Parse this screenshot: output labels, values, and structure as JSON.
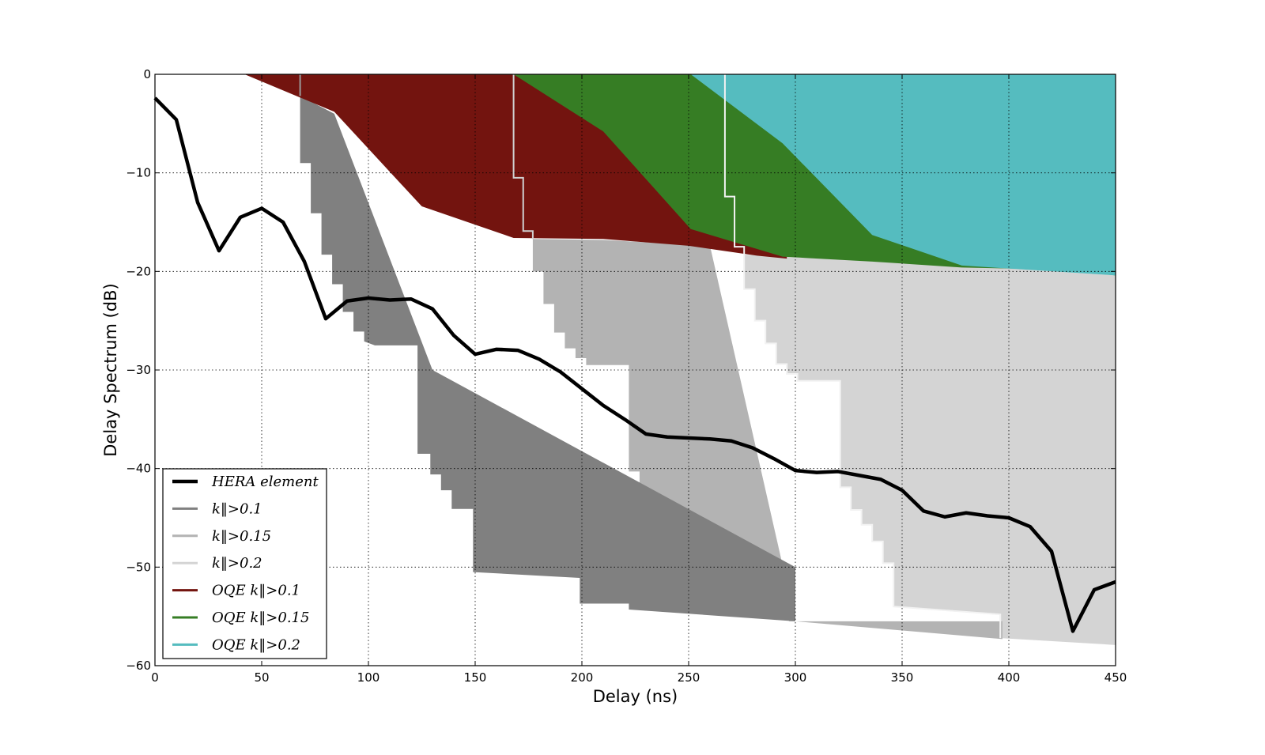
{
  "chart_data": {
    "type": "area",
    "title": "",
    "xlabel": "Delay (ns)",
    "ylabel": "Delay Spectrum (dB)",
    "xlim": [
      0,
      450
    ],
    "ylim": [
      -60,
      0
    ],
    "xticks": [
      0,
      50,
      100,
      150,
      200,
      250,
      300,
      350,
      400,
      450
    ],
    "yticks": [
      0,
      -10,
      -20,
      -30,
      -40,
      -50,
      -60
    ],
    "grid": true,
    "legend_position": "lower-left",
    "colors": {
      "hera": "#000000",
      "k01": "#808080",
      "k015": "#b3b3b3",
      "k02": "#d4d4d4",
      "oqe01": "#73140f",
      "oqe015": "#367d24",
      "oqe02": "#55bcbf"
    },
    "legend": [
      {
        "key": "hera",
        "label": "HERA element"
      },
      {
        "key": "k01",
        "label": "k‖>0.1"
      },
      {
        "key": "k015",
        "label": "k‖>0.15"
      },
      {
        "key": "k02",
        "label": "k‖>0.2"
      },
      {
        "key": "oqe01",
        "label": "OQE k‖>0.1"
      },
      {
        "key": "oqe015",
        "label": "OQE k‖>0.15"
      },
      {
        "key": "oqe02",
        "label": "OQE k‖>0.2"
      }
    ],
    "series": [
      {
        "name": "HERA element",
        "key": "hera",
        "type": "line",
        "x": [
          0,
          10,
          20,
          30,
          40,
          50,
          60,
          70,
          80,
          90,
          100,
          110,
          120,
          130,
          140,
          150,
          160,
          170,
          180,
          190,
          200,
          210,
          220,
          230,
          240,
          250,
          260,
          270,
          280,
          290,
          300,
          310,
          320,
          330,
          340,
          350,
          360,
          370,
          380,
          390,
          400,
          410,
          420,
          430,
          440,
          450
        ],
        "y": [
          -2.4,
          -4.6,
          -13,
          -17.9,
          -14.5,
          -13.6,
          -15,
          -19,
          -24.8,
          -23,
          -22.7,
          -22.9,
          -22.8,
          -23.8,
          -26.5,
          -28.4,
          -27.9,
          -28,
          -28.9,
          -30.2,
          -31.9,
          -33.6,
          -35,
          -36.5,
          -36.8,
          -36.9,
          -37,
          -37.2,
          -37.9,
          -39,
          -40.2,
          -40.4,
          -40.3,
          -40.7,
          -41.1,
          -42.2,
          -44.3,
          -44.9,
          -44.5,
          -44.8,
          -45,
          -45.9,
          -48.4,
          -56.5,
          -52.3,
          -51.5
        ]
      },
      {
        "name": "k‖>0.1",
        "key": "k01",
        "type": "area",
        "x_upper": [
          68,
          68,
          68.3,
          73,
          73,
          78,
          78,
          83,
          83,
          88,
          88,
          93,
          93,
          98,
          98,
          103,
          123,
          123,
          129,
          129,
          134,
          134,
          139,
          139,
          149,
          149,
          199,
          199,
          222,
          222,
          300,
          300,
          130,
          84,
          68
        ],
        "y_upper": [
          -2.2,
          -9,
          -9,
          -9,
          -14.1,
          -14.1,
          -18.3,
          -18.3,
          -21.3,
          -21.3,
          -24.1,
          -24.1,
          -26.1,
          -26.1,
          -27.1,
          -27.5,
          -27.5,
          -38.5,
          -38.5,
          -40.6,
          -40.6,
          -42.2,
          -42.2,
          -44.1,
          -44.1,
          -50.5,
          -51.1,
          -53.7,
          -53.7,
          -54.3,
          -55.5,
          -50,
          -30,
          -4,
          -2.2
        ]
      },
      {
        "name": "k‖>0.15",
        "key": "k015",
        "type": "area",
        "x_upper": [
          177,
          177,
          182,
          182,
          187,
          187,
          192,
          192,
          197,
          197,
          202,
          202,
          222,
          222,
          227,
          227,
          232,
          232,
          237,
          237,
          242,
          242,
          247,
          247,
          297,
          297,
          397,
          397,
          400,
          397,
          300,
          260,
          210,
          177
        ],
        "y_upper": [
          -16.7,
          -20,
          -20,
          -23.3,
          -23.3,
          -26.2,
          -26.2,
          -27.8,
          -27.8,
          -28.8,
          -28.8,
          -29.5,
          -29.5,
          -40.3,
          -40.3,
          -42.5,
          -42.5,
          -43.8,
          -43.8,
          -45.3,
          -45.3,
          -46.8,
          -46.8,
          -52.3,
          -52.8,
          -55.5,
          -55.5,
          -57.3,
          -57.3,
          -57.3,
          -55.5,
          -17.4,
          -16.8,
          -16.7
        ]
      },
      {
        "name": "k‖>0.2",
        "key": "k02",
        "type": "area",
        "x_upper": [
          276,
          276,
          281,
          281,
          286,
          286,
          291,
          291,
          296,
          296,
          301,
          301,
          321,
          321,
          326,
          326,
          331,
          331,
          336,
          336,
          341,
          341,
          346,
          346,
          396,
          396,
          450,
          450,
          400,
          276
        ],
        "y_upper": [
          -18.3,
          -21.8,
          -21.8,
          -25,
          -25,
          -27.3,
          -27.3,
          -29.4,
          -29.4,
          -30.4,
          -30.4,
          -31.1,
          -31.1,
          -41.9,
          -41.9,
          -44.2,
          -44.2,
          -45.7,
          -45.7,
          -47.4,
          -47.4,
          -49.6,
          -49.6,
          -54,
          -54.8,
          -57.2,
          -57.9,
          -20.4,
          -19.7,
          -18.3
        ]
      },
      {
        "name": "OQE k‖>0.1",
        "key": "oqe01",
        "type": "area",
        "x_upper": [
          0,
          42,
          84,
          125,
          168,
          210,
          250,
          282,
          296,
          250,
          210,
          168,
          125,
          84,
          42
        ],
        "y_upper": [
          0,
          0,
          -3.8,
          -13.4,
          -16.6,
          -16.7,
          -17.4,
          -18.4,
          -18.7,
          -17.4,
          -16.7,
          -16.6,
          -13.4,
          -3.8,
          0
        ]
      },
      {
        "name": "OQE k‖>0.15",
        "key": "oqe015",
        "type": "area",
        "x_upper": [
          168,
          210,
          251,
          294,
          336,
          378,
          420,
          450,
          378,
          300
        ],
        "y_upper": [
          0,
          -5.8,
          -15.7,
          -18.5,
          -19,
          -19.6,
          -19.8,
          -20.4,
          -19.6,
          -18.6
        ]
      },
      {
        "name": "OQE k‖>0.2",
        "key": "oqe02",
        "type": "area",
        "x_upper": [
          251,
          294,
          336,
          378,
          450
        ],
        "y_upper": [
          0,
          -7,
          -16.3,
          -19.4,
          -20.4
        ]
      }
    ]
  }
}
